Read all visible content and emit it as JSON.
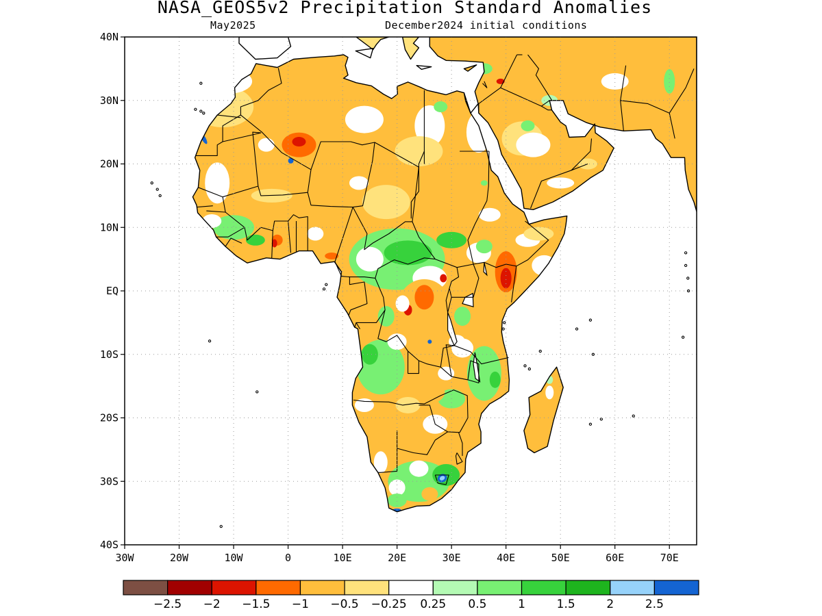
{
  "title": "NASA_GEOS5v2 Precipitation Standard Anomalies",
  "subtitle_left": "May2025",
  "subtitle_right": "December2024 initial conditions",
  "map": {
    "projection": "cylindrical equidistant",
    "lon_range": [
      -30,
      75
    ],
    "lat_range": [
      -40,
      40
    ],
    "grid": "dotted",
    "lat_ticks": [
      {
        "value": 40,
        "label": "40N"
      },
      {
        "value": 30,
        "label": "30N"
      },
      {
        "value": 20,
        "label": "20N"
      },
      {
        "value": 10,
        "label": "10N"
      },
      {
        "value": 0,
        "label": "EQ"
      },
      {
        "value": -10,
        "label": "10S"
      },
      {
        "value": -20,
        "label": "20S"
      },
      {
        "value": -30,
        "label": "30S"
      },
      {
        "value": -40,
        "label": "40S"
      }
    ],
    "lon_ticks": [
      {
        "value": -30,
        "label": "30W"
      },
      {
        "value": -20,
        "label": "20W"
      },
      {
        "value": -10,
        "label": "10W"
      },
      {
        "value": 0,
        "label": "0"
      },
      {
        "value": 10,
        "label": "10E"
      },
      {
        "value": 20,
        "label": "20E"
      },
      {
        "value": 30,
        "label": "30E"
      },
      {
        "value": 40,
        "label": "40E"
      },
      {
        "value": 50,
        "label": "50E"
      },
      {
        "value": 60,
        "label": "60E"
      },
      {
        "value": 70,
        "label": "70E"
      }
    ],
    "anomaly_regions": [
      {
        "name": "sahara-west",
        "level": -0.5,
        "color": "#ffbf40"
      },
      {
        "name": "niger-chad",
        "level": -1.0,
        "color": "#ff6a00"
      },
      {
        "name": "central-africa-green",
        "level": 0.5,
        "color": "#7ff06e"
      },
      {
        "name": "southern-africa-green",
        "level": 1.0,
        "color": "#3ccc3c"
      },
      {
        "name": "lesotho-blue",
        "level": 2.5,
        "color": "#1565d8"
      }
    ]
  },
  "colorbar": {
    "colors": [
      "#7d4f43",
      "#a10000",
      "#dc1400",
      "#ff6a00",
      "#ffbe3c",
      "#ffe27c",
      "#ffffff",
      "#b4fab4",
      "#78f073",
      "#37d23c",
      "#1eb41e",
      "#96d2fa",
      "#1464d2"
    ],
    "labels": [
      "−2.5",
      "−2",
      "−1.5",
      "−1",
      "−0.5",
      "−0.25",
      "0.25",
      "0.5",
      "1",
      "1.5",
      "2",
      "2.5"
    ]
  }
}
